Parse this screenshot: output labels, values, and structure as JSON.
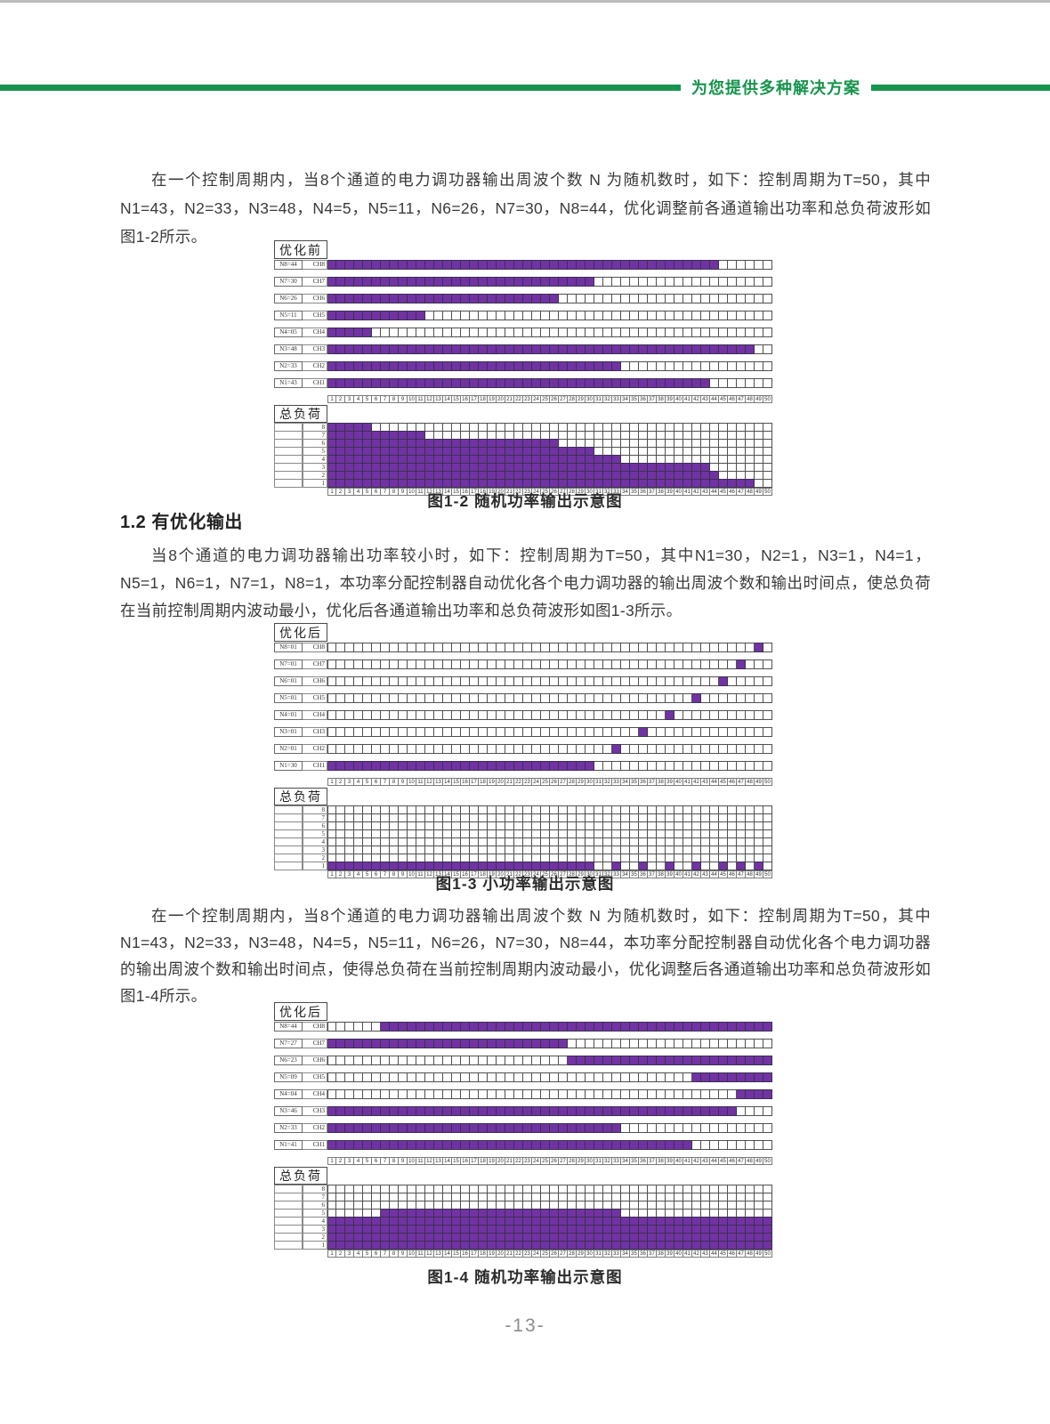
{
  "header": {
    "slogan": "为您提供多种解决方案"
  },
  "section_heading": "1.2 有优化输出",
  "paragraphs": {
    "p1": "在一个控制周期内，当8个通道的电力调功器输出周波个数 N 为随机数时，如下：控制周期为T=50，其中N1=43，N2=33，N3=48，N4=5，N5=11，N6=26，N7=30，N8=44，优化调整前各通道输出功率和总负荷波形如图1-2所示。",
    "p2": "当8个通道的电力调功器输出功率较小时，如下：控制周期为T=50，其中N1=30，N2=1，N3=1，N4=1，N5=1，N6=1，N7=1，N8=1，本功率分配控制器自动优化各个电力调功器的输出周波个数和输出时间点，使总负荷在当前控制周期内波动最小，优化后各通道输出功率和总负荷波形如图1-3所示。",
    "p3": "在一个控制周期内，当8个通道的电力调功器输出周波个数 N 为随机数时，如下：控制周期为T=50，其中N1=43，N2=33，N3=48，N4=5，N5=11，N6=26，N7=30，N8=44，本功率分配控制器自动优化各个电力调功器的输出周波个数和输出时间点，使得总负荷在当前控制周期内波动最小，优化调整后各通道输出功率和总负荷波形如图1-4所示。"
  },
  "page_number": "-13-",
  "colors": {
    "green": "#17944d",
    "purple": "#7133a3"
  },
  "chart_data": [
    {
      "type": "heatmap",
      "title": "优化前",
      "caption": "图1-2 随机功率输出示意图",
      "load_label": "总负荷",
      "columns": 50,
      "x_ticks_range": [
        1,
        50
      ],
      "channels": [
        {
          "label": "N8=44",
          "channel": "CH8",
          "on": [
            [
              1,
              44
            ]
          ]
        },
        {
          "label": "N7=30",
          "channel": "CH7",
          "on": [
            [
              1,
              30
            ]
          ]
        },
        {
          "label": "N6=26",
          "channel": "CH6",
          "on": [
            [
              1,
              26
            ]
          ]
        },
        {
          "label": "N5=11",
          "channel": "CH5",
          "on": [
            [
              1,
              11
            ]
          ]
        },
        {
          "label": "N4=05",
          "channel": "CH4",
          "on": [
            [
              1,
              5
            ]
          ]
        },
        {
          "label": "N3=48",
          "channel": "CH3",
          "on": [
            [
              1,
              48
            ]
          ]
        },
        {
          "label": "N2=33",
          "channel": "CH2",
          "on": [
            [
              1,
              33
            ]
          ]
        },
        {
          "label": "N1=43",
          "channel": "CH1",
          "on": [
            [
              1,
              43
            ]
          ]
        }
      ],
      "load_levels": [
        {
          "level": 8,
          "on": [
            [
              1,
              5
            ]
          ]
        },
        {
          "level": 7,
          "on": [
            [
              1,
              11
            ]
          ]
        },
        {
          "level": 6,
          "on": [
            [
              1,
              26
            ]
          ]
        },
        {
          "level": 5,
          "on": [
            [
              1,
              30
            ]
          ]
        },
        {
          "level": 4,
          "on": [
            [
              1,
              33
            ]
          ]
        },
        {
          "level": 3,
          "on": [
            [
              1,
              43
            ]
          ]
        },
        {
          "level": 2,
          "on": [
            [
              1,
              44
            ]
          ]
        },
        {
          "level": 1,
          "on": [
            [
              1,
              48
            ]
          ]
        }
      ]
    },
    {
      "type": "heatmap",
      "title": "优化后",
      "caption": "图1-3 小功率输出示意图",
      "load_label": "总负荷",
      "columns": 50,
      "x_ticks_range": [
        1,
        50
      ],
      "channels": [
        {
          "label": "N8=01",
          "channel": "CH8",
          "on": [
            [
              49,
              49
            ]
          ]
        },
        {
          "label": "N7=01",
          "channel": "CH7",
          "on": [
            [
              47,
              47
            ]
          ]
        },
        {
          "label": "N6=01",
          "channel": "CH6",
          "on": [
            [
              45,
              45
            ]
          ]
        },
        {
          "label": "N5=01",
          "channel": "CH5",
          "on": [
            [
              42,
              42
            ]
          ]
        },
        {
          "label": "N4=01",
          "channel": "CH4",
          "on": [
            [
              39,
              39
            ]
          ]
        },
        {
          "label": "N3=01",
          "channel": "CH3",
          "on": [
            [
              36,
              36
            ]
          ]
        },
        {
          "label": "N2=01",
          "channel": "CH2",
          "on": [
            [
              33,
              33
            ]
          ]
        },
        {
          "label": "N1=30",
          "channel": "CH1",
          "on": [
            [
              1,
              30
            ]
          ]
        }
      ],
      "load_levels": [
        {
          "level": 8,
          "on": []
        },
        {
          "level": 7,
          "on": []
        },
        {
          "level": 6,
          "on": []
        },
        {
          "level": 5,
          "on": []
        },
        {
          "level": 4,
          "on": []
        },
        {
          "level": 3,
          "on": []
        },
        {
          "level": 2,
          "on": []
        },
        {
          "level": 1,
          "on": [
            [
              1,
              30
            ],
            [
              33,
              33
            ],
            [
              36,
              36
            ],
            [
              39,
              39
            ],
            [
              42,
              42
            ],
            [
              45,
              45
            ],
            [
              47,
              47
            ],
            [
              49,
              49
            ]
          ]
        }
      ]
    },
    {
      "type": "heatmap",
      "title": "优化后",
      "caption": "图1-4 随机功率输出示意图",
      "load_label": "总负荷",
      "columns": 50,
      "x_ticks_range": [
        1,
        50
      ],
      "channels": [
        {
          "label": "N8=44",
          "channel": "CH8",
          "on": [
            [
              7,
              50
            ]
          ]
        },
        {
          "label": "N7=27",
          "channel": "CH7",
          "on": [
            [
              1,
              27
            ]
          ]
        },
        {
          "label": "N6=23",
          "channel": "CH6",
          "on": [
            [
              28,
              50
            ]
          ]
        },
        {
          "label": "N5=09",
          "channel": "CH5",
          "on": [
            [
              42,
              50
            ]
          ]
        },
        {
          "label": "N4=04",
          "channel": "CH4",
          "on": [
            [
              47,
              50
            ]
          ]
        },
        {
          "label": "N3=46",
          "channel": "CH3",
          "on": [
            [
              1,
              46
            ]
          ]
        },
        {
          "label": "N2=33",
          "channel": "CH2",
          "on": [
            [
              1,
              33
            ]
          ]
        },
        {
          "label": "N1=41",
          "channel": "CH1",
          "on": [
            [
              1,
              41
            ]
          ]
        }
      ],
      "load_levels": [
        {
          "level": 8,
          "on": []
        },
        {
          "level": 7,
          "on": []
        },
        {
          "level": 6,
          "on": []
        },
        {
          "level": 5,
          "on": [
            [
              7,
              33
            ]
          ]
        },
        {
          "level": 4,
          "on": [
            [
              1,
              50
            ]
          ]
        },
        {
          "level": 3,
          "on": [
            [
              1,
              50
            ]
          ]
        },
        {
          "level": 2,
          "on": [
            [
              1,
              50
            ]
          ]
        },
        {
          "level": 1,
          "on": [
            [
              1,
              50
            ]
          ]
        }
      ]
    }
  ]
}
